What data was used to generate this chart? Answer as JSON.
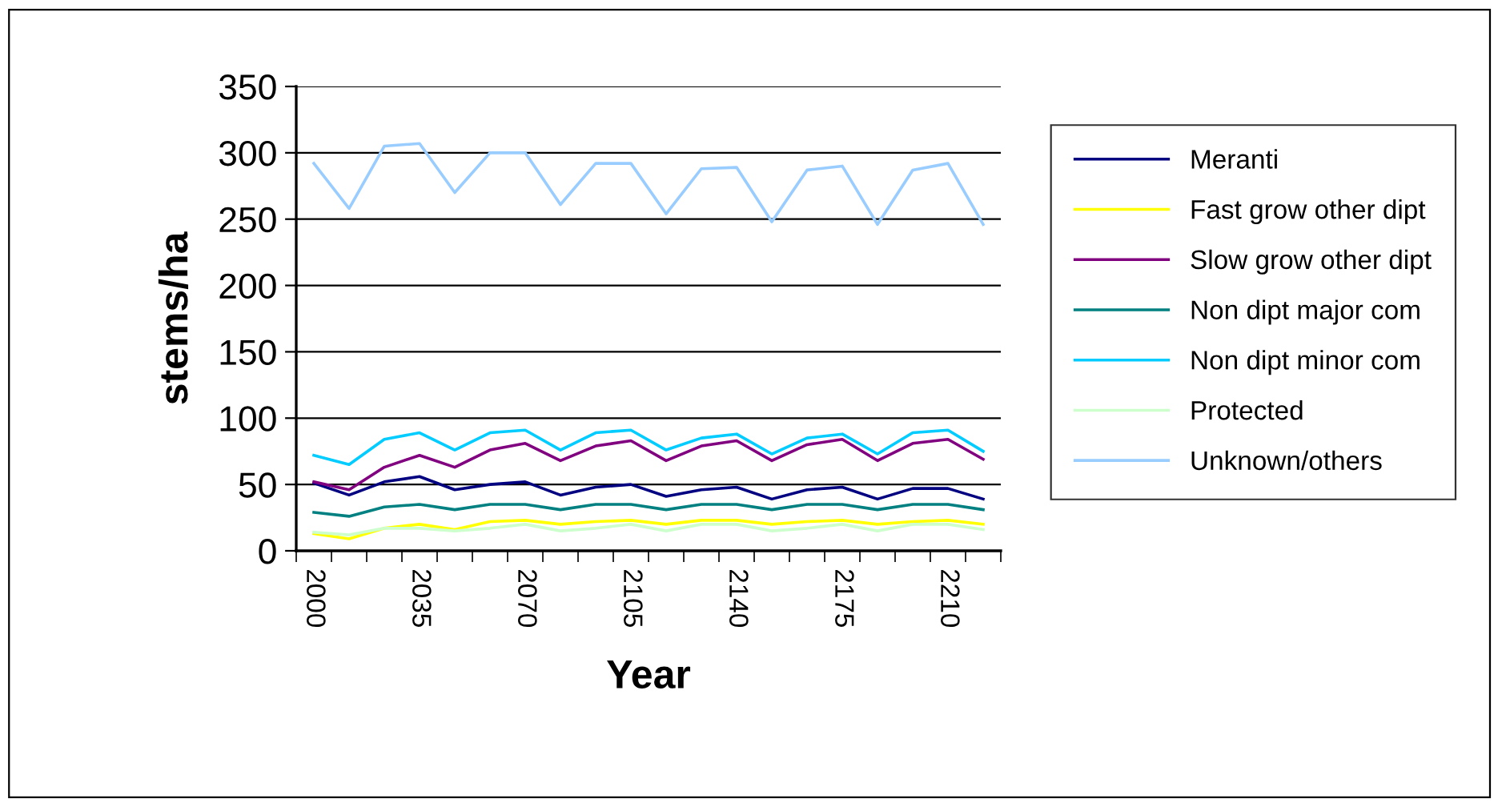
{
  "chart_data": {
    "type": "line",
    "xlabel": "Year",
    "ylabel": "stems/ha",
    "categories": [
      "2000",
      null,
      null,
      "2035",
      null,
      null,
      "2070",
      null,
      null,
      "2105",
      null,
      null,
      "2140",
      null,
      null,
      "2175",
      null,
      null,
      "2210",
      null
    ],
    "series": [
      {
        "name": "Meranti",
        "color": "#000080",
        "values": [
          51,
          42,
          52,
          56,
          46,
          50,
          52,
          42,
          48,
          50,
          41,
          46,
          48,
          39,
          46,
          48,
          39,
          47,
          47,
          39
        ]
      },
      {
        "name": "Fast grow other dipt",
        "color": "#ffff00",
        "values": [
          13,
          9,
          17,
          20,
          16,
          22,
          23,
          20,
          22,
          23,
          20,
          23,
          23,
          20,
          22,
          23,
          20,
          22,
          23,
          20
        ]
      },
      {
        "name": "Slow grow other dipt",
        "color": "#800080",
        "values": [
          52,
          46,
          63,
          72,
          63,
          76,
          81,
          68,
          79,
          83,
          68,
          79,
          83,
          68,
          80,
          84,
          68,
          81,
          84,
          69
        ]
      },
      {
        "name": "Non dipt major com",
        "color": "#008080",
        "values": [
          29,
          26,
          33,
          35,
          31,
          35,
          35,
          31,
          35,
          35,
          31,
          35,
          35,
          31,
          35,
          35,
          31,
          35,
          35,
          31
        ]
      },
      {
        "name": "Non dipt minor com",
        "color": "#00ccff",
        "values": [
          72,
          65,
          84,
          89,
          76,
          89,
          91,
          76,
          89,
          91,
          76,
          85,
          88,
          73,
          85,
          88,
          73,
          89,
          91,
          75
        ]
      },
      {
        "name": "Protected",
        "color": "#ccffcc",
        "values": [
          14,
          12,
          17,
          17,
          15,
          17,
          20,
          15,
          17,
          20,
          15,
          20,
          20,
          15,
          17,
          20,
          15,
          20,
          20,
          16
        ]
      },
      {
        "name": "Unknown/others",
        "color": "#99ccff",
        "values": [
          292,
          258,
          305,
          307,
          270,
          300,
          300,
          261,
          292,
          292,
          254,
          288,
          289,
          248,
          287,
          290,
          246,
          287,
          292,
          246
        ]
      }
    ],
    "ylim": [
      0,
      350
    ],
    "yticks": [
      0,
      50,
      100,
      150,
      200,
      250,
      300,
      350
    ],
    "grid": "y",
    "legend": "right",
    "marker": "none",
    "line_style": "solid"
  }
}
